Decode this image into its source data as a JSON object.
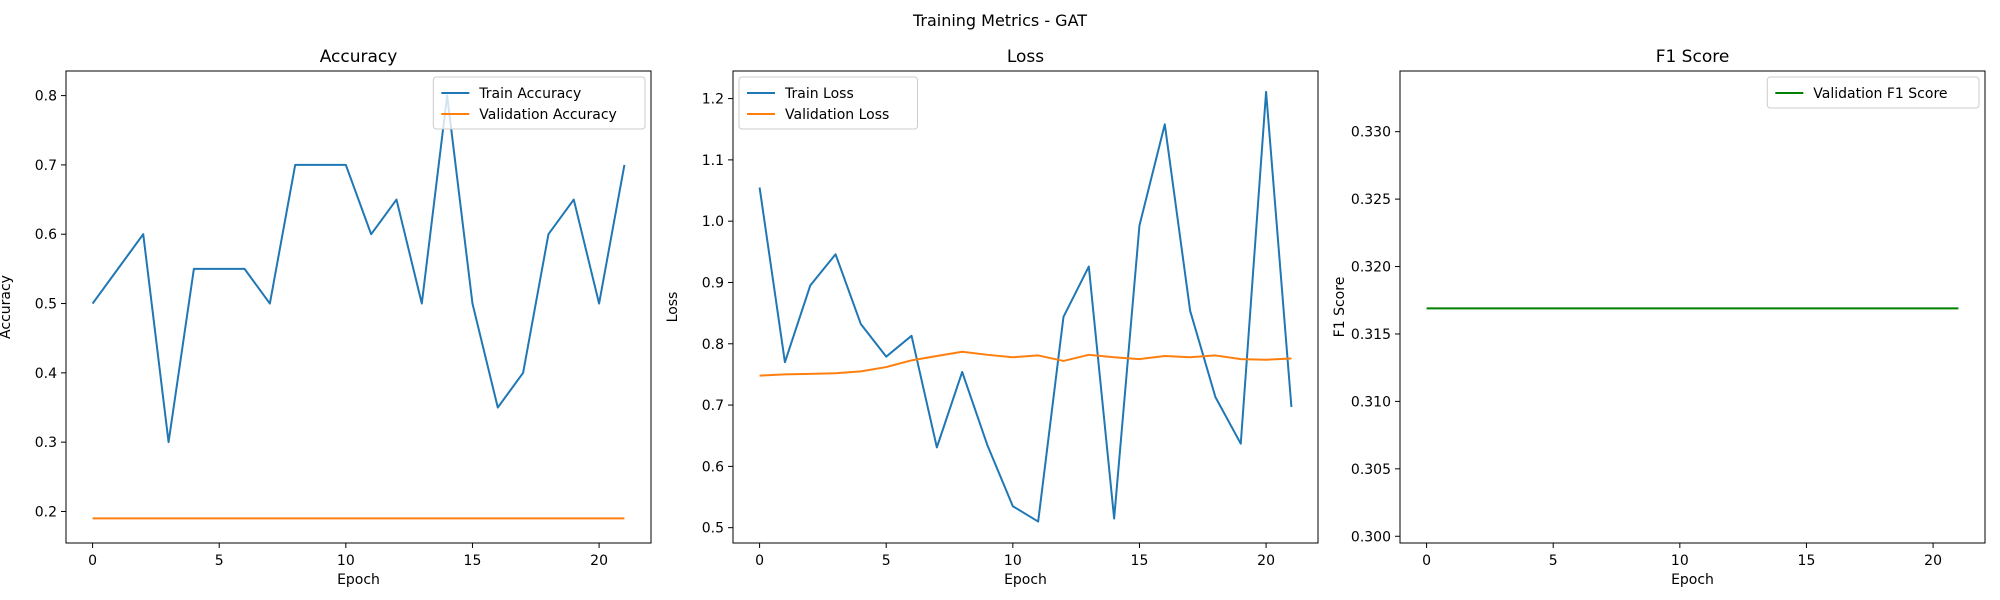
{
  "figure": {
    "suptitle": "Training Metrics - GAT"
  },
  "chart_data": [
    {
      "type": "line",
      "title": "Accuracy",
      "xlabel": "Epoch",
      "ylabel": "Accuracy",
      "xlim": [
        -1.05,
        22.05
      ],
      "ylim": [
        0.1545,
        0.8355
      ],
      "xticks": [
        0,
        5,
        10,
        15,
        20
      ],
      "yticks": [
        0.2,
        0.3,
        0.4,
        0.5,
        0.6,
        0.7,
        0.8
      ],
      "ytick_labels": [
        "0.2",
        "0.3",
        "0.4",
        "0.5",
        "0.6",
        "0.7",
        "0.8"
      ],
      "grid": false,
      "legend": "upper right",
      "x": [
        0,
        1,
        2,
        3,
        4,
        5,
        6,
        7,
        8,
        9,
        10,
        11,
        12,
        13,
        14,
        15,
        16,
        17,
        18,
        19,
        20,
        21
      ],
      "series": [
        {
          "name": "Train Accuracy",
          "color": "#1f77b4",
          "values": [
            0.5,
            0.55,
            0.6,
            0.3,
            0.55,
            0.55,
            0.55,
            0.5,
            0.7,
            0.7,
            0.7,
            0.6,
            0.65,
            0.5,
            0.8,
            0.5,
            0.35,
            0.4,
            0.6,
            0.65,
            0.5,
            0.7
          ]
        },
        {
          "name": "Validation Accuracy",
          "color": "#ff7f0e",
          "values": [
            0.19,
            0.19,
            0.19,
            0.19,
            0.19,
            0.19,
            0.19,
            0.19,
            0.19,
            0.19,
            0.19,
            0.19,
            0.19,
            0.19,
            0.19,
            0.19,
            0.19,
            0.19,
            0.19,
            0.19,
            0.19,
            0.19
          ]
        }
      ]
    },
    {
      "type": "line",
      "title": "Loss",
      "xlabel": "Epoch",
      "ylabel": "Loss",
      "xlim": [
        -1.05,
        22.05
      ],
      "ylim": [
        0.475,
        1.245
      ],
      "xticks": [
        0,
        5,
        10,
        15,
        20
      ],
      "yticks": [
        0.5,
        0.6,
        0.7,
        0.8,
        0.9,
        1.0,
        1.1,
        1.2
      ],
      "ytick_labels": [
        "0.5",
        "0.6",
        "0.7",
        "0.8",
        "0.9",
        "1.0",
        "1.1",
        "1.2"
      ],
      "grid": false,
      "legend": "upper left",
      "x": [
        0,
        1,
        2,
        3,
        4,
        5,
        6,
        7,
        8,
        9,
        10,
        11,
        12,
        13,
        14,
        15,
        16,
        17,
        18,
        19,
        20,
        21
      ],
      "series": [
        {
          "name": "Train Loss",
          "color": "#1f77b4",
          "values": [
            1.055,
            0.77,
            0.895,
            0.946,
            0.832,
            0.779,
            0.813,
            0.631,
            0.754,
            0.634,
            0.535,
            0.51,
            0.844,
            0.926,
            0.515,
            0.993,
            1.158,
            0.854,
            0.713,
            0.637,
            1.211,
            0.697
          ]
        },
        {
          "name": "Validation Loss",
          "color": "#ff7f0e",
          "values": [
            0.748,
            0.75,
            0.751,
            0.752,
            0.755,
            0.762,
            0.773,
            0.78,
            0.787,
            0.782,
            0.778,
            0.781,
            0.772,
            0.782,
            0.778,
            0.775,
            0.78,
            0.778,
            0.781,
            0.775,
            0.774,
            0.776
          ]
        }
      ]
    },
    {
      "type": "line",
      "title": "F1 Score",
      "xlabel": "Epoch",
      "ylabel": "F1 Score",
      "xlim": [
        -1.05,
        22.05
      ],
      "ylim": [
        0.2995,
        0.3345
      ],
      "xticks": [
        0,
        5,
        10,
        15,
        20
      ],
      "yticks": [
        0.3,
        0.305,
        0.31,
        0.315,
        0.32,
        0.325,
        0.33
      ],
      "ytick_labels": [
        "0.300",
        "0.305",
        "0.310",
        "0.315",
        "0.320",
        "0.325",
        "0.330"
      ],
      "grid": false,
      "legend": "upper right",
      "x": [
        0,
        1,
        2,
        3,
        4,
        5,
        6,
        7,
        8,
        9,
        10,
        11,
        12,
        13,
        14,
        15,
        16,
        17,
        18,
        19,
        20,
        21
      ],
      "series": [
        {
          "name": "Validation F1 Score",
          "color": "#008000",
          "values": [
            0.3169,
            0.3169,
            0.3169,
            0.3169,
            0.3169,
            0.3169,
            0.3169,
            0.3169,
            0.3169,
            0.3169,
            0.3169,
            0.3169,
            0.3169,
            0.3169,
            0.3169,
            0.3169,
            0.3169,
            0.3169,
            0.3169,
            0.3169,
            0.3169,
            0.3169
          ]
        }
      ]
    }
  ]
}
